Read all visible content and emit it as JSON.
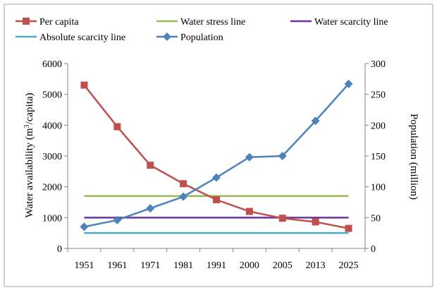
{
  "chart_data": {
    "type": "line",
    "categories": [
      "1951",
      "1961",
      "1971",
      "1981",
      "1991",
      "2000",
      "2005",
      "2013",
      "2025"
    ],
    "series": [
      {
        "name": "Per capita",
        "axis": "left",
        "color": "#c0504d",
        "marker": "square",
        "values": [
          5300,
          3950,
          2700,
          2100,
          1580,
          1200,
          980,
          860,
          650
        ]
      },
      {
        "name": "Water stress line",
        "axis": "left",
        "color": "#9bbb59",
        "marker": "none",
        "values": [
          1700,
          1700,
          1700,
          1700,
          1700,
          1700,
          1700,
          1700,
          1700
        ]
      },
      {
        "name": "Water scarcity line",
        "axis": "left",
        "color": "#7030a0",
        "marker": "none",
        "values": [
          1000,
          1000,
          1000,
          1000,
          1000,
          1000,
          1000,
          1000,
          1000
        ]
      },
      {
        "name": "Absolute scarcity line",
        "axis": "left",
        "color": "#4bacc6",
        "marker": "none",
        "values": [
          500,
          500,
          500,
          500,
          500,
          500,
          500,
          500,
          500
        ]
      },
      {
        "name": "Population",
        "axis": "right",
        "color": "#4f81bd",
        "marker": "diamond",
        "values": [
          35,
          46,
          65,
          84,
          115,
          148,
          150,
          207,
          267
        ]
      }
    ],
    "legend": {
      "placement": "top",
      "columns": 3,
      "order": [
        0,
        1,
        2,
        3,
        4
      ]
    },
    "y_left": {
      "label_prefix": "Water availability (m",
      "label_sup": "3",
      "label_suffix": "/capita)",
      "ylim": [
        0,
        6000
      ],
      "ticks": [
        "0",
        "1000",
        "2000",
        "3000",
        "4000",
        "5000",
        "6000"
      ]
    },
    "y_right": {
      "label": "Population (million)",
      "ylim": [
        0,
        300
      ],
      "ticks": [
        "0",
        "50",
        "100",
        "150",
        "200",
        "250",
        "300"
      ]
    },
    "grid": false
  }
}
